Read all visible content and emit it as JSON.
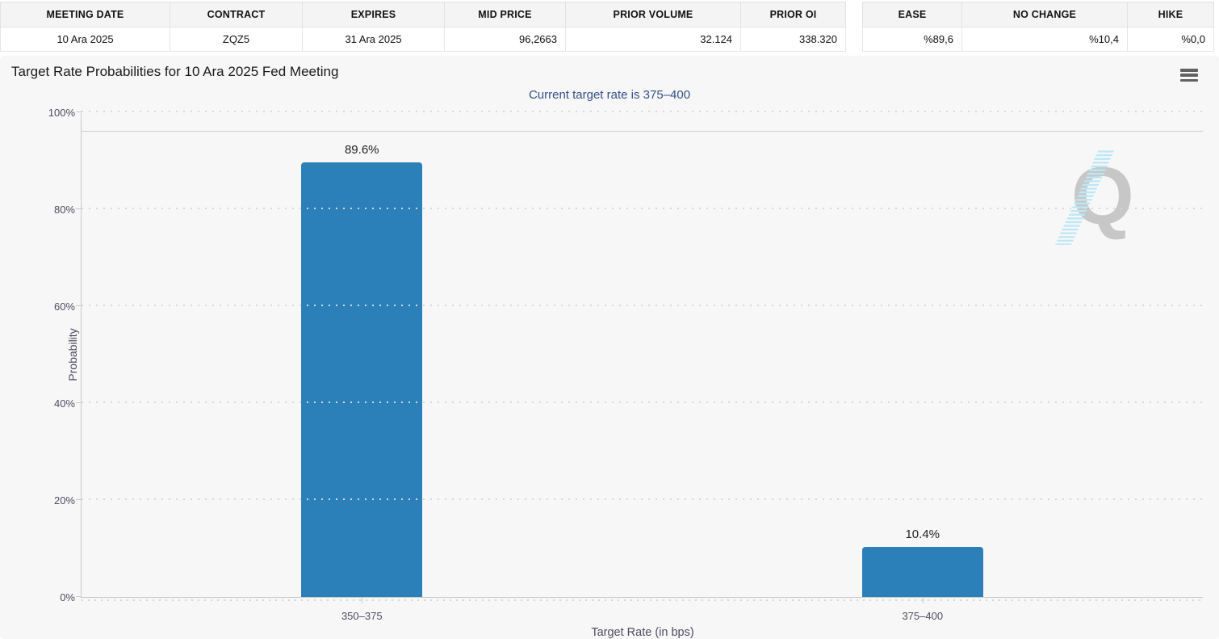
{
  "contracts_table": {
    "headers": [
      "MEETING DATE",
      "CONTRACT",
      "EXPIRES",
      "MID PRICE",
      "PRIOR VOLUME",
      "PRIOR OI"
    ],
    "row": [
      "10 Ara 2025",
      "ZQZ5",
      "31 Ara 2025",
      "96,2663",
      "32.124",
      "338.320"
    ]
  },
  "probability_table": {
    "headers": [
      "EASE",
      "NO CHANGE",
      "HIKE"
    ],
    "row": [
      "%89,6",
      "%10,4",
      "%0,0"
    ]
  },
  "chart": {
    "menu_icon": "hamburger-menu-icon",
    "watermark_letter": "Q"
  },
  "chart_data": {
    "type": "bar",
    "title": "Target Rate Probabilities for 10 Ara 2025 Fed Meeting",
    "subtitle": "Current target rate is 375–400",
    "categories": [
      "350–375",
      "375–400"
    ],
    "values": [
      89.6,
      10.4
    ],
    "value_labels": [
      "89.6%",
      "10.4%"
    ],
    "xlabel": "Target Rate (in bps)",
    "ylabel": "Probability",
    "ylim": [
      0,
      100
    ],
    "yticks": [
      0,
      20,
      40,
      60,
      80,
      100
    ],
    "ytick_labels": [
      "0%",
      "20%",
      "40%",
      "60%",
      "80%",
      "100%"
    ],
    "refline": 96,
    "bar_color": "#2b80b9",
    "grid": true,
    "legend": "none",
    "bar_centers_pct": [
      25,
      75
    ]
  },
  "colors": {
    "bar": "#2b80b9",
    "subtitle": "#335089",
    "panel_bg": "#f7f7f7",
    "watermark_gray": "#c7c7c7",
    "watermark_blue": "#bde7f5"
  }
}
